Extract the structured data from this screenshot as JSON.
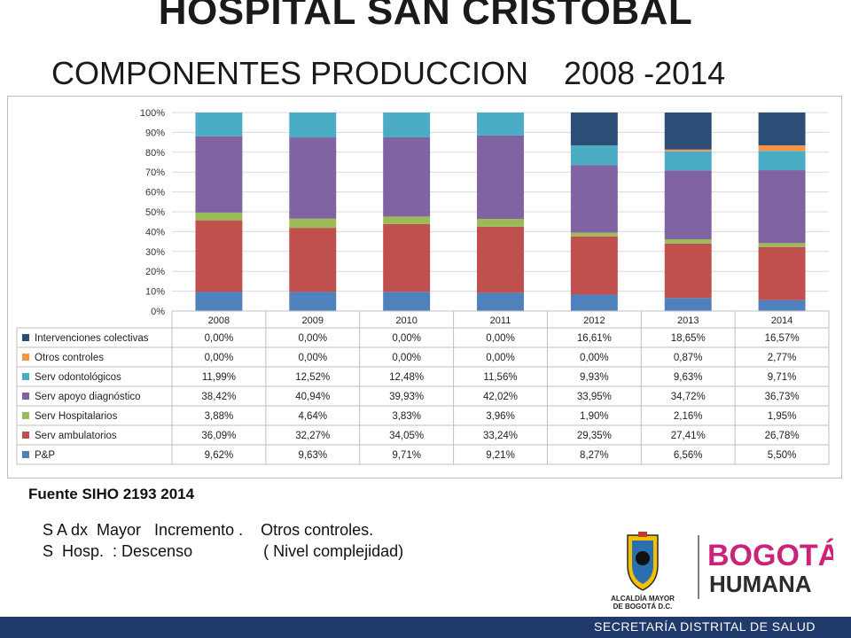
{
  "header": {
    "title": "HOSPITAL SAN CRISTOBAL",
    "subtitle": "COMPONENTES PRODUCCION    2008 -2014"
  },
  "chart_data": {
    "type": "bar",
    "stacked": "100%",
    "categories": [
      "2008",
      "2009",
      "2010",
      "2011",
      "2012",
      "2013",
      "2014"
    ],
    "ylim": [
      0,
      100
    ],
    "yticks": [
      "0%",
      "10%",
      "20%",
      "30%",
      "40%",
      "50%",
      "60%",
      "70%",
      "80%",
      "90%",
      "100%"
    ],
    "grid": true,
    "series": [
      {
        "name": "P&P",
        "color": "#4f81bd",
        "values": [
          9.62,
          9.63,
          9.71,
          9.21,
          8.27,
          6.56,
          5.5
        ],
        "labels": [
          "9,62%",
          "9,63%",
          "9,71%",
          "9,21%",
          "8,27%",
          "6,56%",
          "5,50%"
        ]
      },
      {
        "name": "Serv ambulatorios",
        "color": "#c0504d",
        "values": [
          36.09,
          32.27,
          34.05,
          33.24,
          29.35,
          27.41,
          26.78
        ],
        "labels": [
          "36,09%",
          "32,27%",
          "34,05%",
          "33,24%",
          "29,35%",
          "27,41%",
          "26,78%"
        ]
      },
      {
        "name": "Serv Hospitalarios",
        "color": "#9bbb59",
        "values": [
          3.88,
          4.64,
          3.83,
          3.96,
          1.9,
          2.16,
          1.95
        ],
        "labels": [
          "3,88%",
          "4,64%",
          "3,83%",
          "3,96%",
          "1,90%",
          "2,16%",
          "1,95%"
        ]
      },
      {
        "name": "Serv apoyo diagnóstico",
        "color": "#8064a2",
        "values": [
          38.42,
          40.94,
          39.93,
          42.02,
          33.95,
          34.72,
          36.73
        ],
        "labels": [
          "38,42%",
          "40,94%",
          "39,93%",
          "42,02%",
          "33,95%",
          "34,72%",
          "36,73%"
        ]
      },
      {
        "name": "Serv odontológicos",
        "color": "#4bacc6",
        "values": [
          11.99,
          12.52,
          12.48,
          11.56,
          9.93,
          9.63,
          9.71
        ],
        "labels": [
          "11,99%",
          "12,52%",
          "12,48%",
          "11,56%",
          "9,93%",
          "9,63%",
          "9,71%"
        ]
      },
      {
        "name": "Otros controles",
        "color": "#f79646",
        "values": [
          0.0,
          0.0,
          0.0,
          0.0,
          0.0,
          0.87,
          2.77
        ],
        "labels": [
          "0,00%",
          "0,00%",
          "0,00%",
          "0,00%",
          "0,00%",
          "0,87%",
          "2,77%"
        ]
      },
      {
        "name": "Intervenciones colectivas",
        "color": "#2c4d75",
        "values": [
          0.0,
          0.0,
          0.0,
          0.0,
          16.61,
          18.65,
          16.57
        ],
        "labels": [
          "0,00%",
          "0,00%",
          "0,00%",
          "0,00%",
          "16,61%",
          "18,65%",
          "16,57%"
        ]
      }
    ]
  },
  "source": "Fuente SIHO 2193 2014",
  "notes": [
    "S A dx  Mayor   Incremento .    Otros controles.",
    "S  Hosp.  : Descenso                ( Nivel complejidad)"
  ],
  "logos": {
    "alcaldia_line1": "ALCALDÍA MAYOR",
    "alcaldia_line2": "DE BOGOTÁ D.C.",
    "bogota_line1": "BOGOTÁ",
    "bogota_line2": "HUMANA"
  },
  "footer": {
    "text": "SECRETARÍA DISTRITAL DE SALUD",
    "color": "#1f3a6b"
  }
}
